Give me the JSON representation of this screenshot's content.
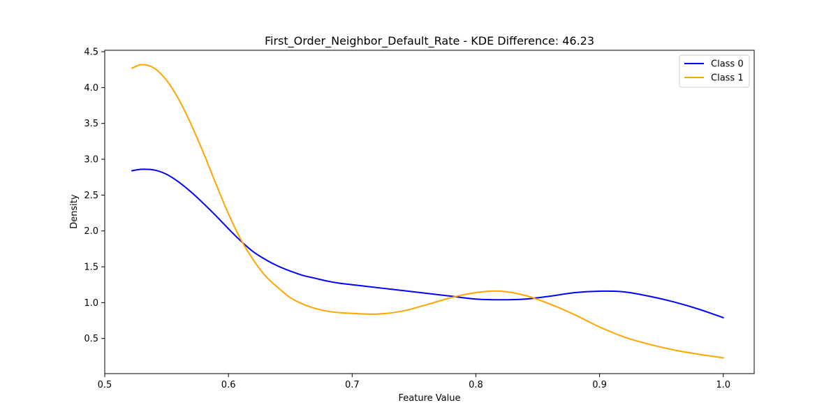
{
  "chart_data": {
    "type": "line",
    "title": "First_Order_Neighbor_Default_Rate - KDE Difference: 46.23",
    "xlabel": "Feature Value",
    "ylabel": "Density",
    "xlim": [
      0.5,
      1.025
    ],
    "ylim": [
      0.01,
      4.52
    ],
    "xticks": [
      "0.5",
      "0.6",
      "0.7",
      "0.8",
      "0.9",
      "1.0"
    ],
    "xtick_values": [
      0.5,
      0.6,
      0.7,
      0.8,
      0.9,
      1.0
    ],
    "yticks": [
      "0.5",
      "1.0",
      "1.5",
      "2.0",
      "2.5",
      "3.0",
      "3.5",
      "4.0",
      "4.5"
    ],
    "ytick_values": [
      0.5,
      1.0,
      1.5,
      2.0,
      2.5,
      3.0,
      3.5,
      4.0,
      4.5
    ],
    "grid": false,
    "legend_position": "top-right",
    "series": [
      {
        "name": "Class 0",
        "color": "#0000ff",
        "x": [
          0.522,
          0.53,
          0.54,
          0.55,
          0.56,
          0.57,
          0.58,
          0.59,
          0.6,
          0.61,
          0.62,
          0.63,
          0.64,
          0.65,
          0.66,
          0.67,
          0.68,
          0.69,
          0.7,
          0.72,
          0.74,
          0.76,
          0.78,
          0.8,
          0.82,
          0.84,
          0.86,
          0.88,
          0.9,
          0.92,
          0.94,
          0.96,
          0.98,
          1.0
        ],
        "y": [
          2.84,
          2.86,
          2.85,
          2.79,
          2.68,
          2.54,
          2.38,
          2.21,
          2.03,
          1.86,
          1.71,
          1.6,
          1.51,
          1.44,
          1.38,
          1.34,
          1.3,
          1.27,
          1.25,
          1.21,
          1.17,
          1.13,
          1.09,
          1.05,
          1.04,
          1.05,
          1.09,
          1.14,
          1.16,
          1.15,
          1.09,
          1.01,
          0.91,
          0.79
        ]
      },
      {
        "name": "Class 1",
        "color": "#ffa500",
        "x": [
          0.522,
          0.53,
          0.54,
          0.55,
          0.56,
          0.57,
          0.58,
          0.59,
          0.6,
          0.61,
          0.62,
          0.63,
          0.64,
          0.65,
          0.66,
          0.67,
          0.68,
          0.69,
          0.7,
          0.72,
          0.74,
          0.76,
          0.78,
          0.8,
          0.82,
          0.84,
          0.86,
          0.88,
          0.9,
          0.92,
          0.94,
          0.96,
          0.98,
          1.0
        ],
        "y": [
          4.27,
          4.32,
          4.27,
          4.1,
          3.83,
          3.48,
          3.08,
          2.65,
          2.24,
          1.88,
          1.6,
          1.37,
          1.21,
          1.07,
          0.98,
          0.92,
          0.88,
          0.86,
          0.85,
          0.84,
          0.88,
          0.97,
          1.07,
          1.14,
          1.16,
          1.1,
          0.98,
          0.83,
          0.66,
          0.52,
          0.42,
          0.34,
          0.28,
          0.23
        ]
      }
    ]
  }
}
